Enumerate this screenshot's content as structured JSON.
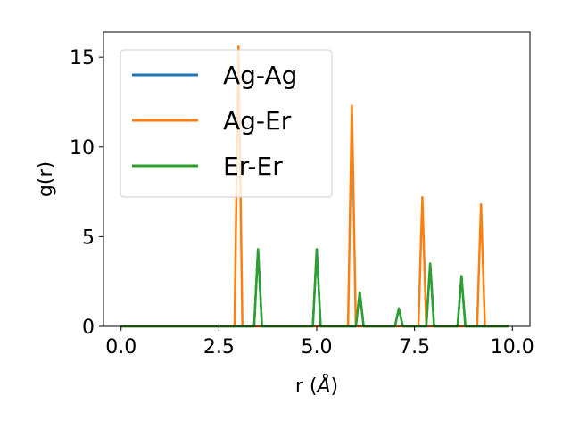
{
  "chart_data": {
    "type": "line",
    "xlabel": "r (",
    "xlabel_unit": "Å",
    "xlabel_close": ")",
    "ylabel": "g(r)",
    "xlim": [
      -0.45,
      10.45
    ],
    "ylim": [
      0,
      16.4
    ],
    "xticks": [
      0.0,
      2.5,
      5.0,
      7.5,
      10.0
    ],
    "xtick_labels": [
      "0.0",
      "2.5",
      "5.0",
      "7.5",
      "10.0"
    ],
    "yticks": [
      0,
      5,
      10,
      15
    ],
    "ytick_labels": [
      "0",
      "5",
      "10",
      "15"
    ],
    "grid": false,
    "legend_position": "upper-left",
    "series": [
      {
        "name": "Ag-Ag",
        "color": "#1f77b4",
        "x": [
          0.0,
          3.4,
          3.5,
          3.6,
          4.9,
          5.0,
          5.1,
          6.0,
          6.1,
          6.2,
          7.0,
          7.1,
          7.2,
          7.8,
          7.9,
          8.0,
          8.6,
          8.7,
          8.8,
          9.9
        ],
        "y": [
          0,
          0,
          4.3,
          0,
          0,
          4.3,
          0,
          0,
          1.9,
          0,
          0,
          1.0,
          0,
          0,
          3.5,
          0,
          0,
          2.8,
          0,
          0
        ]
      },
      {
        "name": "Ag-Er",
        "color": "#ff7f0e",
        "x": [
          0.0,
          2.9,
          3.0,
          3.1,
          5.8,
          5.9,
          6.0,
          7.6,
          7.7,
          7.8,
          9.1,
          9.2,
          9.3,
          9.9
        ],
        "y": [
          0,
          0,
          15.6,
          0,
          0,
          12.3,
          0,
          0,
          7.2,
          0,
          0,
          6.8,
          0,
          0
        ]
      },
      {
        "name": "Er-Er",
        "color": "#2ca02c",
        "x": [
          0.0,
          3.4,
          3.5,
          3.6,
          4.9,
          5.0,
          5.1,
          6.0,
          6.1,
          6.2,
          7.0,
          7.1,
          7.2,
          7.8,
          7.9,
          8.0,
          8.6,
          8.7,
          8.8,
          9.9
        ],
        "y": [
          0,
          0,
          4.3,
          0,
          0,
          4.3,
          0,
          0,
          1.9,
          0,
          0,
          1.0,
          0,
          0,
          3.5,
          0,
          0,
          2.8,
          0,
          0
        ]
      }
    ]
  }
}
